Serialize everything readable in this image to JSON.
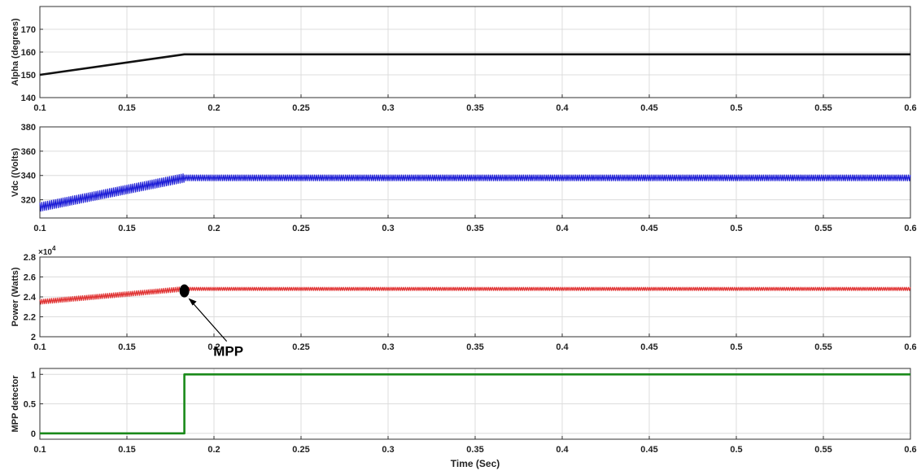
{
  "chart_data": [
    {
      "type": "line",
      "ylabel": "Alpha (degrees)",
      "xlim": [
        0.1,
        0.6
      ],
      "ylim": [
        140,
        180
      ],
      "xticks": [
        0.1,
        0.15,
        0.2,
        0.25,
        0.3,
        0.35,
        0.4,
        0.45,
        0.5,
        0.55,
        0.6
      ],
      "yticks": [
        140,
        150,
        160,
        170
      ],
      "grid": true,
      "color": "#111111",
      "series": [
        {
          "x": [
            0.1,
            0.183,
            0.6
          ],
          "y": [
            150,
            159,
            159
          ]
        }
      ]
    },
    {
      "type": "line",
      "ylabel": "Vdc ((Volts)",
      "xlim": [
        0.1,
        0.6
      ],
      "ylim": [
        305,
        380
      ],
      "xticks": [
        0.1,
        0.15,
        0.2,
        0.25,
        0.3,
        0.35,
        0.4,
        0.45,
        0.5,
        0.55,
        0.6
      ],
      "yticks": [
        320,
        340,
        360,
        380
      ],
      "grid": true,
      "color": "#1c1cd6",
      "ripple": 3,
      "series": [
        {
          "x": [
            0.1,
            0.183,
            0.6
          ],
          "y": [
            314,
            338,
            338
          ]
        }
      ]
    },
    {
      "type": "line",
      "ylabel": "Power (Watts)",
      "y_multiplier": "×10",
      "y_multiplier_exp": "4",
      "xlim": [
        0.1,
        0.6
      ],
      "ylim": [
        2,
        2.8
      ],
      "xticks": [
        0.1,
        0.15,
        0.2,
        0.25,
        0.3,
        0.35,
        0.4,
        0.45,
        0.5,
        0.55,
        0.6
      ],
      "yticks": [
        2,
        2.2,
        2.4,
        2.6,
        2.8
      ],
      "grid": true,
      "color": "#e03030",
      "ripple": 0.02,
      "series": [
        {
          "x": [
            0.1,
            0.183,
            0.6
          ],
          "y": [
            2.35,
            2.48,
            2.48
          ]
        }
      ],
      "annotation": {
        "label": "MPP",
        "x": 0.183,
        "y": 2.46
      }
    },
    {
      "type": "line",
      "ylabel": "MPP detector",
      "xlabel": "Time (Sec)",
      "xlim": [
        0.1,
        0.6
      ],
      "ylim": [
        -0.1,
        1.1
      ],
      "xticks": [
        0.1,
        0.15,
        0.2,
        0.25,
        0.3,
        0.35,
        0.4,
        0.45,
        0.5,
        0.55,
        0.6
      ],
      "yticks": [
        0,
        0.5,
        1
      ],
      "grid": true,
      "color": "#1a8a1a",
      "series": [
        {
          "x": [
            0.1,
            0.183,
            0.183,
            0.6
          ],
          "y": [
            0,
            0,
            1,
            1
          ]
        }
      ]
    }
  ]
}
